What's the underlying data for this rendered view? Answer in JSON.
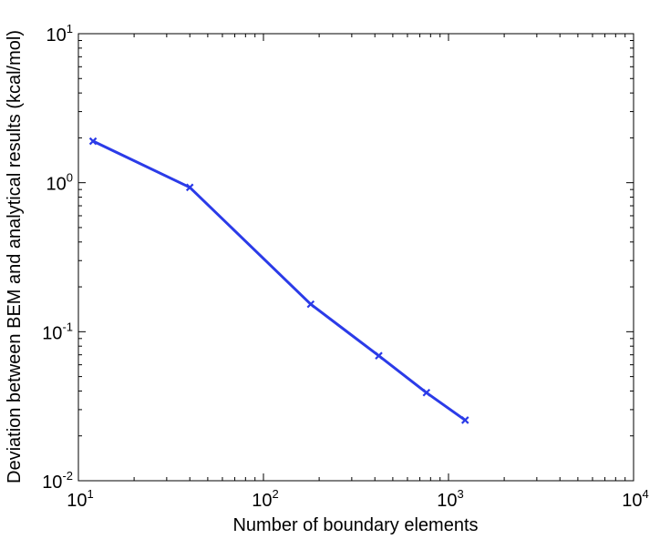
{
  "chart_data": {
    "type": "line",
    "title": "",
    "xlabel": "Number of boundary elements",
    "ylabel": "Deviation between BEM and analytical results (kcal/mol)",
    "x_scale": "log",
    "y_scale": "log",
    "xlim": [
      10,
      10000
    ],
    "ylim": [
      0.01,
      10
    ],
    "x_ticks": [
      {
        "base": "10",
        "exp": "1"
      },
      {
        "base": "10",
        "exp": "2"
      },
      {
        "base": "10",
        "exp": "3"
      },
      {
        "base": "10",
        "exp": "4"
      }
    ],
    "y_ticks": [
      {
        "base": "10",
        "exp": "-2"
      },
      {
        "base": "10",
        "exp": "-1"
      },
      {
        "base": "10",
        "exp": "0"
      },
      {
        "base": "10",
        "exp": "1"
      }
    ],
    "grid": false,
    "series": [
      {
        "color": "#2b3be8",
        "marker": "x",
        "x": [
          12,
          40,
          180,
          420,
          760,
          1230
        ],
        "y": [
          1.9,
          0.93,
          0.153,
          0.069,
          0.039,
          0.0255
        ]
      }
    ]
  }
}
